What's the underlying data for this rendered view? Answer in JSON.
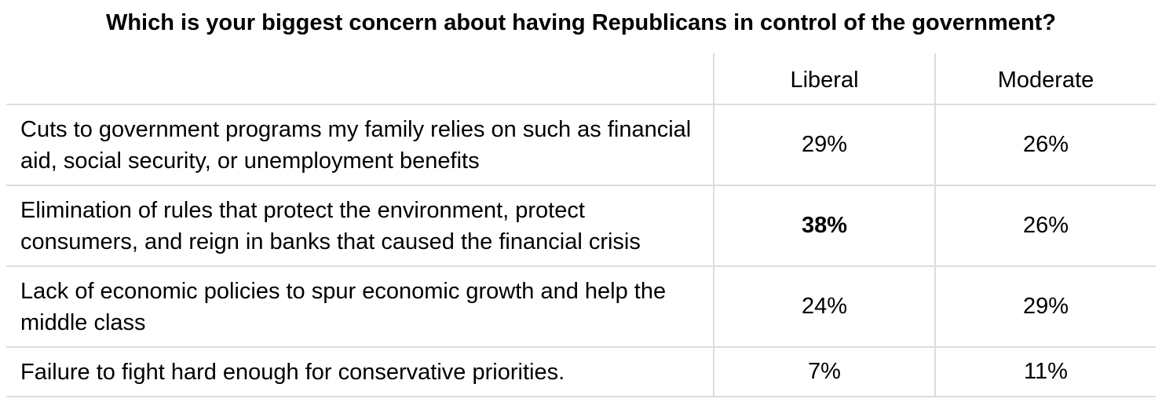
{
  "title": "Which is your biggest concern about having Republicans in control of the government?",
  "table": {
    "columns": [
      "",
      "Liberal",
      "Moderate"
    ],
    "rows": [
      [
        "Cuts to government programs my family relies on such as financial aid, social security, or unemployment benefits",
        "29%",
        "26%"
      ],
      [
        "Elimination of rules that protect the environment, protect consumers, and reign in banks that caused the financial crisis",
        "38%",
        "26%"
      ],
      [
        "Lack of economic policies to spur economic growth and help the middle class",
        "24%",
        "29%"
      ],
      [
        "Failure to fight hard enough for conservative priorities.",
        "7%",
        "11%"
      ]
    ]
  }
}
